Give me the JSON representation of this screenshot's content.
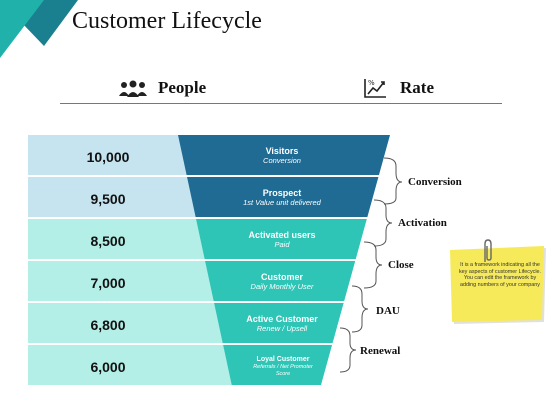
{
  "header": {
    "title": "Customer Lifecycle"
  },
  "columns": {
    "people": "People",
    "rate": "Rate"
  },
  "colors": {
    "dark_blue": "#1f6b94",
    "teal": "#2ec4b6",
    "light_blue_band": "#c6e4f0",
    "light_teal_band": "#b3eee7",
    "note": "#f7ea5a",
    "accent_triangle": "#1a7f8e",
    "accent_triangle_light": "#20b2aa"
  },
  "rows": [
    {
      "count": "10,000",
      "stage": "Visitors",
      "detail": "Conversion"
    },
    {
      "count": "9,500",
      "stage": "Prospect",
      "detail": "1st Value unit delivered"
    },
    {
      "count": "8,500",
      "stage": "Activated users",
      "detail": "Paid"
    },
    {
      "count": "7,000",
      "stage": "Customer",
      "detail": "Daily Monthly User"
    },
    {
      "count": "6,800",
      "stage": "Active Customer",
      "detail": "Renew / Upsell"
    },
    {
      "count": "6,000",
      "stage": "Loyal Customer",
      "detail": "Referrals / Net Promoter Score"
    }
  ],
  "transitions": [
    "Conversion",
    "Activation",
    "Close",
    "DAU",
    "Renewal"
  ],
  "note": {
    "text": "It is a framework indicating all the key aspects of customer Lifecycle. You can edit the framework by adding numbers of your company"
  },
  "icons": {
    "people": "people-group-icon",
    "rate": "rate-chart-icon",
    "clip": "paperclip-icon"
  }
}
